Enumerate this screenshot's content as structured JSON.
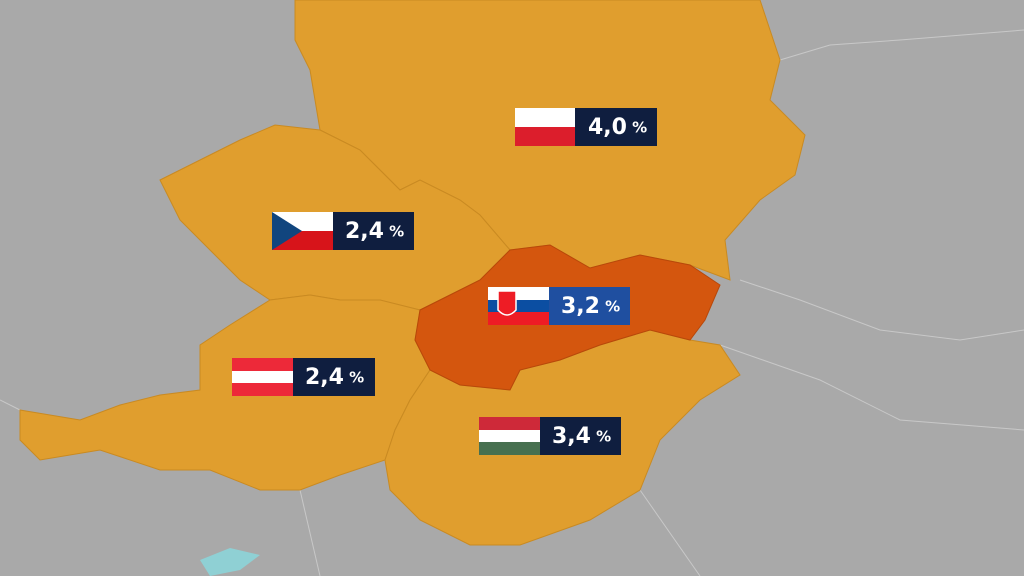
{
  "labels": [
    {
      "value": "4,0",
      "unit": "%"
    },
    {
      "value": "2,4",
      "unit": "%"
    },
    {
      "value": "3,2",
      "unit": "%"
    },
    {
      "value": "2,4",
      "unit": "%"
    },
    {
      "value": "3,4",
      "unit": "%"
    }
  ]
}
